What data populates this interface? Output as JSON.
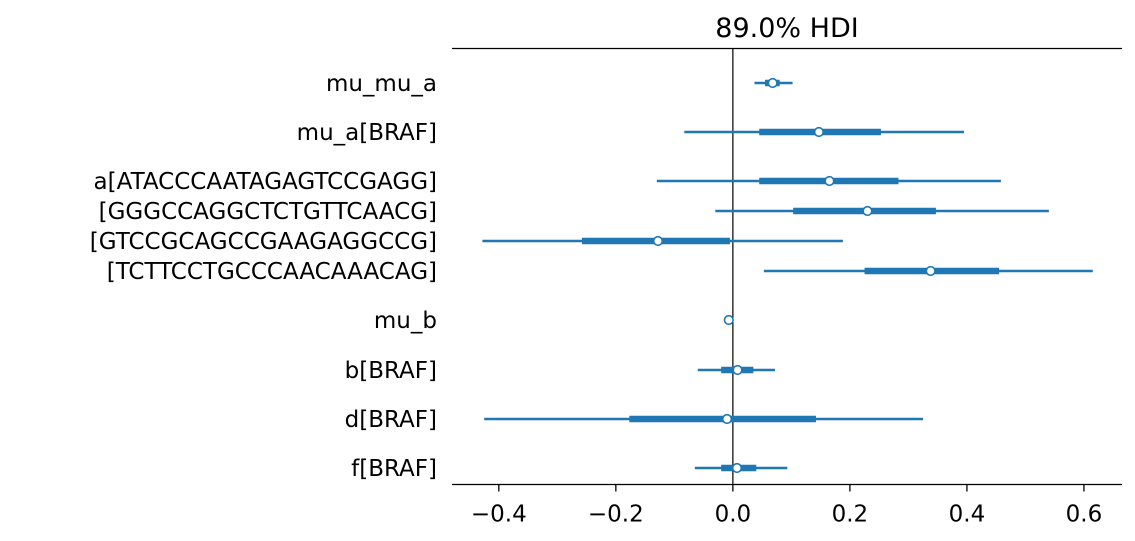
{
  "chart_data": {
    "type": "forest",
    "title": "89.0% HDI",
    "xlim": [
      -0.48,
      0.665
    ],
    "xticks": [
      -0.4,
      -0.2,
      0.0,
      0.2,
      0.4,
      0.6
    ],
    "xtick_labels": [
      "−0.4",
      "−0.2",
      "0.0",
      "0.2",
      "0.4",
      "0.6"
    ],
    "reference_line_x": 0.0,
    "series_color": "#1f77b4",
    "groups": [
      {
        "label": "mu_mu_a",
        "rows": [
          {
            "label": "mu_mu_a",
            "mean": 0.068,
            "hdi_low": 0.037,
            "hdi_high": 0.102,
            "iqr_low": 0.055,
            "iqr_high": 0.08
          }
        ]
      },
      {
        "label": "mu_a[BRAF]",
        "rows": [
          {
            "label": "mu_a[BRAF]",
            "mean": 0.147,
            "hdi_low": -0.083,
            "hdi_high": 0.395,
            "iqr_low": 0.045,
            "iqr_high": 0.253
          }
        ]
      },
      {
        "label": "a",
        "rows": [
          {
            "label": "a[ATACCCAATAGAGTCCGAGG]",
            "mean": 0.165,
            "hdi_low": -0.13,
            "hdi_high": 0.458,
            "iqr_low": 0.045,
            "iqr_high": 0.283
          },
          {
            "label": "[GGGCCAGGCTCTGTTCAACG]",
            "mean": 0.23,
            "hdi_low": -0.03,
            "hdi_high": 0.54,
            "iqr_low": 0.103,
            "iqr_high": 0.347
          },
          {
            "label": "[GTCCGCAGCCGAAGAGGCCG]",
            "mean": -0.128,
            "hdi_low": -0.428,
            "hdi_high": 0.188,
            "iqr_low": -0.258,
            "iqr_high": -0.005
          },
          {
            "label": "[TCTTCCTGCCCAACAAACAG]",
            "mean": 0.338,
            "hdi_low": 0.053,
            "hdi_high": 0.615,
            "iqr_low": 0.225,
            "iqr_high": 0.455
          }
        ]
      },
      {
        "label": "mu_b",
        "rows": [
          {
            "label": "mu_b",
            "mean": -0.007,
            "hdi_low": -0.009,
            "hdi_high": -0.005,
            "iqr_low": -0.008,
            "iqr_high": -0.006
          }
        ]
      },
      {
        "label": "b[BRAF]",
        "rows": [
          {
            "label": "b[BRAF]",
            "mean": 0.008,
            "hdi_low": -0.06,
            "hdi_high": 0.072,
            "iqr_low": -0.02,
            "iqr_high": 0.035
          }
        ]
      },
      {
        "label": "d[BRAF]",
        "rows": [
          {
            "label": "d[BRAF]",
            "mean": -0.01,
            "hdi_low": -0.425,
            "hdi_high": 0.325,
            "iqr_low": -0.177,
            "iqr_high": 0.142
          }
        ]
      },
      {
        "label": "f[BRAF]",
        "rows": [
          {
            "label": "f[BRAF]",
            "mean": 0.007,
            "hdi_low": -0.065,
            "hdi_high": 0.093,
            "iqr_low": -0.02,
            "iqr_high": 0.04
          }
        ]
      }
    ]
  }
}
